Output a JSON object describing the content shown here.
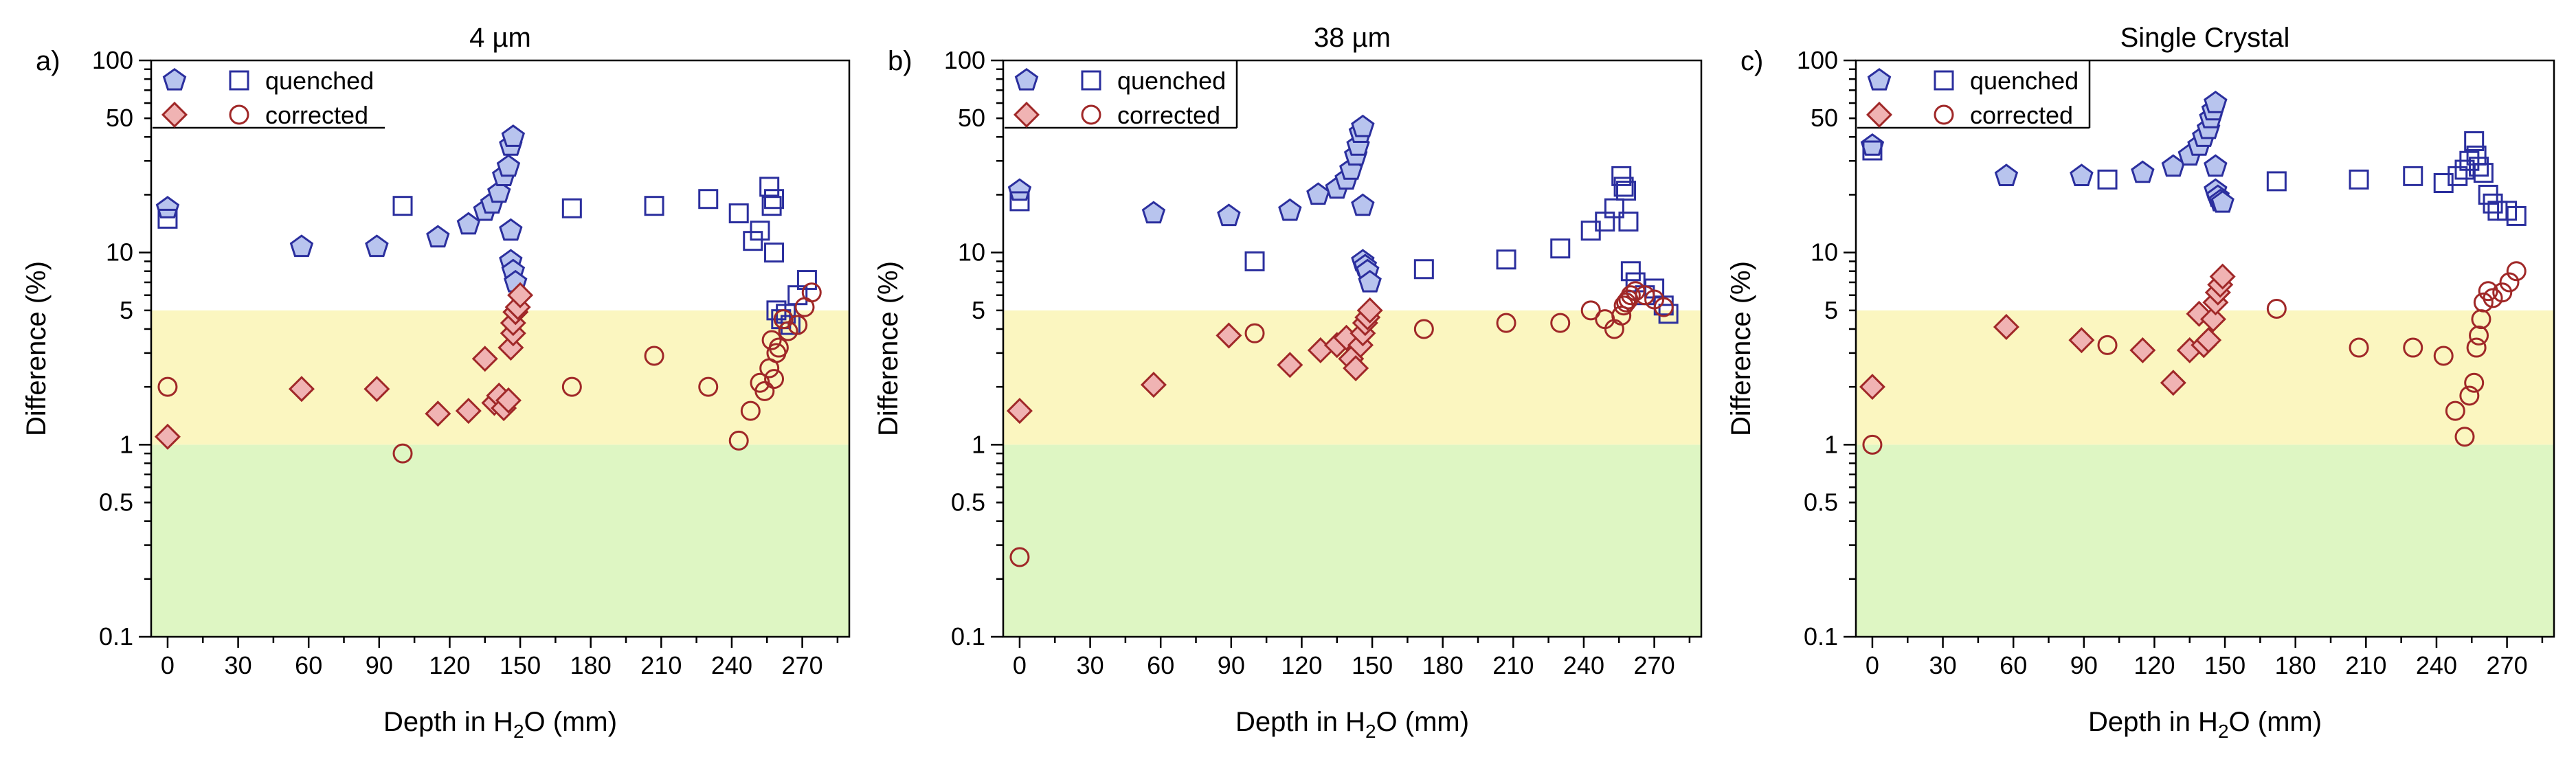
{
  "figure": {
    "colors": {
      "quenched_fill": "#b8c4ee",
      "quenched_stroke": "#2b2f9e",
      "corrected_fill": "#f0b3b3",
      "corrected_stroke": "#a02828",
      "band_yellow": "#fbf6c0",
      "band_green": "#def6c3"
    },
    "legend": {
      "quenched": "quenched",
      "corrected": "corrected"
    }
  },
  "chart_data": [
    {
      "type": "scatter",
      "panel_label": "a)",
      "title": "4 µm",
      "xlabel": {
        "prefix": "Depth in H",
        "sub": "2",
        "suffix": "O (mm)"
      },
      "ylabel": "Difference (%)",
      "yscale": "log",
      "xlim": [
        -7,
        290
      ],
      "ylim": [
        0.1,
        100
      ],
      "xticks": [
        0,
        30,
        60,
        90,
        120,
        150,
        180,
        210,
        240,
        270
      ],
      "yticks": [
        0.1,
        0.5,
        1,
        5,
        10,
        50,
        100
      ],
      "ytick_labels": [
        "0.1",
        "0.5",
        "1",
        "5",
        "10",
        "50",
        "100"
      ],
      "bands": [
        {
          "from": 0.1,
          "to": 1,
          "color": "green"
        },
        {
          "from": 1,
          "to": 5,
          "color": "yellow"
        }
      ],
      "series": [
        {
          "name": "quenched",
          "marker": "pentagon",
          "points": [
            [
              0,
              17
            ],
            [
              57,
              10.7
            ],
            [
              89,
              10.7
            ],
            [
              115,
              12
            ],
            [
              128,
              14
            ],
            [
              135,
              16.5
            ],
            [
              138,
              18
            ],
            [
              141,
              20.5
            ],
            [
              143,
              25
            ],
            [
              145,
              28
            ],
            [
              146,
              36
            ],
            [
              147,
              40
            ],
            [
              146,
              13
            ],
            [
              146,
              9
            ],
            [
              147,
              8
            ],
            [
              148,
              7
            ]
          ]
        },
        {
          "name": "quenched",
          "marker": "square",
          "points": [
            [
              0,
              15
            ],
            [
              100,
              17.5
            ],
            [
              172,
              17
            ],
            [
              207,
              17.5
            ],
            [
              230,
              19
            ],
            [
              243,
              16
            ],
            [
              249,
              11.5
            ],
            [
              252,
              13
            ],
            [
              256,
              22
            ],
            [
              257,
              17.5
            ],
            [
              258,
              19
            ],
            [
              258,
              10
            ],
            [
              259,
              5
            ],
            [
              261,
              4.5
            ],
            [
              263,
              4.8
            ],
            [
              265,
              4.2
            ],
            [
              268,
              6
            ],
            [
              272,
              7.2
            ]
          ]
        },
        {
          "name": "corrected",
          "marker": "diamond",
          "points": [
            [
              0,
              1.1
            ],
            [
              57,
              1.95
            ],
            [
              89,
              1.95
            ],
            [
              115,
              1.45
            ],
            [
              128,
              1.5
            ],
            [
              135,
              2.8
            ],
            [
              139,
              1.65
            ],
            [
              141,
              1.8
            ],
            [
              143,
              1.55
            ],
            [
              145,
              1.7
            ],
            [
              146,
              3.2
            ],
            [
              147,
              3.8
            ],
            [
              147,
              4.3
            ],
            [
              148,
              4.9
            ],
            [
              149,
              5.2
            ],
            [
              150,
              6
            ]
          ]
        },
        {
          "name": "corrected",
          "marker": "circle",
          "points": [
            [
              0,
              2
            ],
            [
              100,
              0.9
            ],
            [
              172,
              2
            ],
            [
              207,
              2.9
            ],
            [
              230,
              2
            ],
            [
              243,
              1.05
            ],
            [
              248,
              1.5
            ],
            [
              252,
              2.1
            ],
            [
              254,
              1.9
            ],
            [
              256,
              2.5
            ],
            [
              257,
              3.5
            ],
            [
              258,
              2.2
            ],
            [
              259,
              3
            ],
            [
              260,
              3.2
            ],
            [
              262,
              4.5
            ],
            [
              264,
              3.9
            ],
            [
              268,
              4.2
            ],
            [
              271,
              5.2
            ],
            [
              274,
              6.2
            ]
          ]
        }
      ]
    },
    {
      "type": "scatter",
      "panel_label": "b)",
      "title": "38 µm",
      "xlabel": {
        "prefix": "Depth in H",
        "sub": "2",
        "suffix": "O (mm)"
      },
      "ylabel": "Difference (%)",
      "yscale": "log",
      "xlim": [
        -7,
        290
      ],
      "ylim": [
        0.1,
        100
      ],
      "xticks": [
        0,
        30,
        60,
        90,
        120,
        150,
        180,
        210,
        240,
        270
      ],
      "yticks": [
        0.1,
        0.5,
        1,
        5,
        10,
        50,
        100
      ],
      "ytick_labels": [
        "0.1",
        "0.5",
        "1",
        "5",
        "10",
        "50",
        "100"
      ],
      "bands": [
        {
          "from": 0.1,
          "to": 1,
          "color": "green"
        },
        {
          "from": 1,
          "to": 5,
          "color": "yellow"
        }
      ],
      "series": [
        {
          "name": "quenched",
          "marker": "pentagon",
          "points": [
            [
              0,
              21
            ],
            [
              57,
              16
            ],
            [
              89,
              15.5
            ],
            [
              115,
              16.5
            ],
            [
              127,
              20
            ],
            [
              135,
              21.5
            ],
            [
              139,
              24
            ],
            [
              141,
              27
            ],
            [
              143,
              32
            ],
            [
              144,
              36
            ],
            [
              145,
              42
            ],
            [
              146,
              45
            ],
            [
              146,
              17.5
            ],
            [
              146,
              9
            ],
            [
              147,
              8.5
            ],
            [
              148,
              8
            ],
            [
              149,
              7
            ]
          ]
        },
        {
          "name": "quenched",
          "marker": "square",
          "points": [
            [
              0,
              18.5
            ],
            [
              100,
              9
            ],
            [
              172,
              8.2
            ],
            [
              207,
              9.2
            ],
            [
              230,
              10.5
            ],
            [
              243,
              13
            ],
            [
              249,
              14.5
            ],
            [
              253,
              17
            ],
            [
              256,
              25
            ],
            [
              257,
              22
            ],
            [
              258,
              21
            ],
            [
              259,
              14.5
            ],
            [
              260,
              8
            ],
            [
              262,
              7
            ],
            [
              266,
              6
            ],
            [
              270,
              6.5
            ],
            [
              274,
              5.3
            ],
            [
              276,
              4.8
            ]
          ]
        },
        {
          "name": "corrected",
          "marker": "diamond",
          "points": [
            [
              0,
              1.5
            ],
            [
              57,
              2.05
            ],
            [
              89,
              3.7
            ],
            [
              115,
              2.6
            ],
            [
              128,
              3.1
            ],
            [
              135,
              3.3
            ],
            [
              139,
              3.6
            ],
            [
              141,
              2.8
            ],
            [
              143,
              2.5
            ],
            [
              145,
              3.3
            ],
            [
              146,
              3.8
            ],
            [
              147,
              4.3
            ],
            [
              148,
              4.6
            ],
            [
              149,
              5
            ]
          ]
        },
        {
          "name": "corrected",
          "marker": "circle",
          "points": [
            [
              0,
              0.26
            ],
            [
              100,
              3.8
            ],
            [
              172,
              4
            ],
            [
              207,
              4.3
            ],
            [
              230,
              4.3
            ],
            [
              243,
              5
            ],
            [
              249,
              4.5
            ],
            [
              253,
              4
            ],
            [
              256,
              4.7
            ],
            [
              257,
              5.3
            ],
            [
              258,
              5.5
            ],
            [
              259,
              5.7
            ],
            [
              260,
              6
            ],
            [
              262,
              6.3
            ],
            [
              266,
              6
            ],
            [
              270,
              5.7
            ],
            [
              274,
              5.2
            ]
          ]
        }
      ]
    },
    {
      "type": "scatter",
      "panel_label": "c)",
      "title": "Single Crystal",
      "xlabel": {
        "prefix": "Depth in H",
        "sub": "2",
        "suffix": "O (mm)"
      },
      "ylabel": "Difference (%)",
      "yscale": "log",
      "xlim": [
        -7,
        290
      ],
      "ylim": [
        0.1,
        100
      ],
      "xticks": [
        0,
        30,
        60,
        90,
        120,
        150,
        180,
        210,
        240,
        270
      ],
      "yticks": [
        0.1,
        0.5,
        1,
        5,
        10,
        50,
        100
      ],
      "ytick_labels": [
        "0.1",
        "0.5",
        "1",
        "5",
        "10",
        "50",
        "100"
      ],
      "bands": [
        {
          "from": 0.1,
          "to": 1,
          "color": "green"
        },
        {
          "from": 1,
          "to": 5,
          "color": "yellow"
        }
      ],
      "series": [
        {
          "name": "quenched",
          "marker": "pentagon",
          "points": [
            [
              0,
              36
            ],
            [
              57,
              25
            ],
            [
              89,
              25
            ],
            [
              115,
              26
            ],
            [
              128,
              28
            ],
            [
              135,
              32
            ],
            [
              139,
              36
            ],
            [
              141,
              40
            ],
            [
              143,
              44
            ],
            [
              144,
              50
            ],
            [
              145,
              55
            ],
            [
              146,
              60
            ],
            [
              146,
              28
            ],
            [
              146,
              21
            ],
            [
              147,
              19.5
            ],
            [
              148,
              18.5
            ],
            [
              149,
              18.2
            ]
          ]
        },
        {
          "name": "quenched",
          "marker": "square",
          "points": [
            [
              0,
              34
            ],
            [
              100,
              24
            ],
            [
              172,
              23.5
            ],
            [
              207,
              24
            ],
            [
              230,
              25
            ],
            [
              243,
              23
            ],
            [
              249,
              25
            ],
            [
              252,
              27
            ],
            [
              254,
              30
            ],
            [
              256,
              38
            ],
            [
              257,
              32
            ],
            [
              258,
              28
            ],
            [
              260,
              26
            ],
            [
              262,
              20
            ],
            [
              264,
              18
            ],
            [
              266,
              16.5
            ],
            [
              270,
              16.5
            ],
            [
              274,
              15.5
            ]
          ]
        },
        {
          "name": "corrected",
          "marker": "diamond",
          "points": [
            [
              0,
              2
            ],
            [
              57,
              4.1
            ],
            [
              89,
              3.5
            ],
            [
              115,
              3.1
            ],
            [
              128,
              2.1
            ],
            [
              135,
              3.1
            ],
            [
              139,
              4.8
            ],
            [
              141,
              3.3
            ],
            [
              143,
              3.5
            ],
            [
              145,
              4.5
            ],
            [
              146,
              5.5
            ],
            [
              147,
              6.2
            ],
            [
              148,
              6.8
            ],
            [
              149,
              7.5
            ]
          ]
        },
        {
          "name": "corrected",
          "marker": "circle",
          "points": [
            [
              0,
              1
            ],
            [
              100,
              3.3
            ],
            [
              172,
              5.1
            ],
            [
              207,
              3.2
            ],
            [
              230,
              3.2
            ],
            [
              243,
              2.9
            ],
            [
              248,
              1.5
            ],
            [
              252,
              1.1
            ],
            [
              254,
              1.8
            ],
            [
              256,
              2.1
            ],
            [
              257,
              3.2
            ],
            [
              258,
              3.7
            ],
            [
              259,
              4.5
            ],
            [
              260,
              5.5
            ],
            [
              262,
              6.3
            ],
            [
              264,
              5.8
            ],
            [
              268,
              6.2
            ],
            [
              271,
              7
            ],
            [
              274,
              8
            ]
          ]
        }
      ]
    }
  ]
}
